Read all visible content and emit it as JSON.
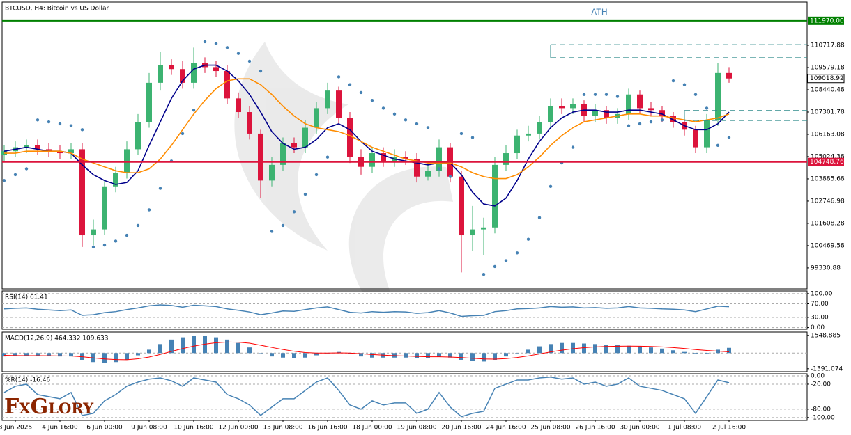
{
  "logo": "FxGlory",
  "chart_data": [
    {
      "type": "candlestick",
      "title": "BTCUSD, H4:  Bitcoin vs US Dollar",
      "annotation": "ATH",
      "categories": [
        null,
        "3 Jun 2025",
        null,
        null,
        null,
        "4 Jun 16:00",
        null,
        null,
        null,
        "6 Jun 00:00",
        null,
        null,
        null,
        "9 Jun 08:00",
        null,
        null,
        null,
        "10 Jun 16:00",
        null,
        null,
        null,
        "12 Jun 00:00",
        null,
        null,
        null,
        "13 Jun 08:00",
        null,
        null,
        null,
        "16 Jun 16:00",
        null,
        null,
        null,
        "18 Jun 00:00",
        null,
        null,
        null,
        "19 Jun 08:00",
        null,
        null,
        null,
        "20 Jun 16:00",
        null,
        null,
        null,
        "24 Jun 16:00",
        null,
        null,
        null,
        "25 Jun 08:00",
        null,
        null,
        null,
        "26 Jun 16:00",
        null,
        null,
        null,
        "30 Jun 00:00",
        null,
        null,
        null,
        "1 Jul 08:00",
        null,
        null,
        null,
        "2 Jul 16:00"
      ],
      "open": [
        105100,
        105300,
        105500,
        105600,
        105400,
        105300,
        105200,
        105400,
        101000,
        101300,
        103500,
        104200,
        105400,
        106800,
        108800,
        109700,
        109500,
        108800,
        109800,
        109600,
        109400,
        108000,
        107300,
        106200,
        103800,
        104600,
        105700,
        105500,
        106500,
        107500,
        108400,
        107000,
        105000,
        104500,
        105200,
        104800,
        105000,
        104900,
        104000,
        104300,
        105500,
        104000,
        101000,
        101300,
        101400,
        104600,
        105200,
        106100,
        106200,
        106800,
        107600,
        107500,
        107700,
        107100,
        107400,
        107000,
        107200,
        108200,
        107500,
        107400,
        107100,
        106800,
        106400,
        105500,
        106900,
        109300
      ],
      "high": [
        105600,
        105800,
        105900,
        105900,
        105700,
        105600,
        105700,
        105700,
        101800,
        103800,
        104500,
        105800,
        107200,
        109300,
        110400,
        110000,
        109900,
        110600,
        110100,
        109900,
        109700,
        108300,
        107600,
        106400,
        105000,
        106000,
        106000,
        106900,
        107800,
        108800,
        108600,
        107300,
        105400,
        105500,
        105500,
        105400,
        105300,
        105200,
        104700,
        105900,
        105700,
        104300,
        102500,
        101900,
        105000,
        105600,
        106400,
        106600,
        107100,
        108000,
        108000,
        108000,
        107900,
        107700,
        107600,
        107500,
        108500,
        108400,
        107800,
        107600,
        107300,
        107000,
        106600,
        107200,
        109800,
        109600
      ],
      "low": [
        104800,
        105000,
        105200,
        105100,
        105000,
        104900,
        104900,
        100400,
        100500,
        101000,
        103200,
        103900,
        105100,
        106500,
        108400,
        109200,
        108500,
        108500,
        109300,
        109100,
        107700,
        107000,
        105900,
        102900,
        103500,
        104300,
        105200,
        105200,
        106200,
        107200,
        106700,
        104700,
        104100,
        104200,
        104500,
        104500,
        104600,
        103700,
        103800,
        104000,
        103700,
        99100,
        100200,
        100000,
        101100,
        104300,
        104900,
        105800,
        105900,
        106500,
        107200,
        107200,
        106800,
        106800,
        106700,
        106700,
        106900,
        107200,
        107100,
        106800,
        106500,
        106100,
        105200,
        105200,
        106600,
        108800
      ],
      "close": [
        105300,
        105500,
        105600,
        105400,
        105300,
        105200,
        105400,
        101000,
        101300,
        103500,
        104200,
        105400,
        106800,
        108800,
        109700,
        109500,
        108800,
        109800,
        109600,
        109400,
        108000,
        107300,
        106200,
        103800,
        104600,
        105700,
        105500,
        106500,
        107500,
        108400,
        107000,
        105000,
        104500,
        105200,
        104800,
        105000,
        104900,
        104000,
        104300,
        105500,
        104000,
        101000,
        101300,
        101400,
        104600,
        105200,
        106100,
        106200,
        106800,
        107600,
        107500,
        107700,
        107100,
        107400,
        107000,
        107200,
        108200,
        107500,
        107400,
        107100,
        106800,
        106400,
        105500,
        106900,
        109300,
        109018.92
      ],
      "up_color": "#3cb371",
      "down_color": "#dc143c",
      "lines": [
        {
          "color": "#00008b",
          "values": [
            105300,
            105400,
            105500,
            105400,
            105300,
            105300,
            105200,
            104600,
            104100,
            103800,
            103600,
            103700,
            104300,
            105600,
            106800,
            108000,
            108900,
            109500,
            109700,
            109700,
            109400,
            108900,
            108200,
            107300,
            106300,
            105700,
            105400,
            105500,
            105900,
            106500,
            106700,
            106400,
            105800,
            105300,
            105100,
            104900,
            104800,
            104700,
            104600,
            104700,
            104700,
            104100,
            103200,
            102600,
            102500,
            102900,
            103800,
            104900,
            105800,
            106500,
            107000,
            107300,
            107400,
            107400,
            107300,
            107300,
            107400,
            107400,
            107300,
            107200,
            106900,
            106600,
            106400,
            106400,
            106700,
            107300
          ]
        },
        {
          "color": "#ff8c00",
          "values": [
            105200,
            105200,
            105300,
            105300,
            105300,
            105300,
            105200,
            104900,
            104700,
            104500,
            104300,
            104200,
            104200,
            104400,
            104900,
            105600,
            106400,
            107200,
            107900,
            108500,
            108900,
            109000,
            109000,
            108700,
            108200,
            107600,
            107100,
            106700,
            106500,
            106400,
            106300,
            106100,
            105800,
            105500,
            105300,
            105100,
            104900,
            104800,
            104700,
            104700,
            104700,
            104500,
            104200,
            104000,
            103900,
            103900,
            104100,
            104500,
            105000,
            105600,
            106100,
            106500,
            106800,
            106900,
            107000,
            107100,
            107200,
            107200,
            107100,
            107100,
            107000,
            106900,
            106800,
            106900,
            107000,
            107200
          ]
        }
      ],
      "sar": {
        "color": "#4682b4",
        "values": [
          103800,
          104100,
          104400,
          106900,
          106800,
          106700,
          106600,
          106400,
          100400,
          100500,
          100700,
          101000,
          101500,
          102300,
          103400,
          104800,
          106200,
          107400,
          110900,
          110800,
          110600,
          110300,
          109900,
          109400,
          101200,
          101500,
          102200,
          103100,
          104100,
          105000,
          109100,
          108700,
          108300,
          107900,
          107500,
          107200,
          106900,
          106700,
          106500,
          104400,
          104000,
          106200,
          106000,
          99000,
          99400,
          99700,
          100100,
          100800,
          101900,
          103500,
          104700,
          105500,
          108200,
          108200,
          108200,
          108100,
          106600,
          106700,
          106800,
          106900,
          108900,
          108700,
          108200,
          107500,
          105600,
          106000
        ]
      },
      "levels": [
        {
          "value": 111970,
          "label": "111970.00",
          "color": "#008000"
        },
        {
          "value": 104748.76,
          "color": "#dc143c"
        }
      ],
      "dashed_levels": {
        "color": "#2e8b8b",
        "values": [
          110750,
          110080,
          107380,
          106870
        ]
      },
      "last_price": 109018.92,
      "ylim": [
        98260,
        112925
      ],
      "yticks": [
        110717.88,
        109579.18,
        108440.48,
        107301.78,
        106163.08,
        105024.38,
        103885.68,
        102746.98,
        101608.28,
        100469.58,
        99330.88
      ],
      "grid": false
    },
    {
      "type": "line",
      "title": "RSI(14) 61.41",
      "color": "#4682b4",
      "values": [
        55,
        57,
        58,
        54,
        52,
        50,
        52,
        36,
        38,
        44,
        47,
        53,
        58,
        64,
        67,
        65,
        60,
        66,
        64,
        62,
        55,
        51,
        46,
        38,
        43,
        49,
        48,
        53,
        58,
        61,
        53,
        45,
        43,
        47,
        45,
        47,
        46,
        42,
        44,
        50,
        43,
        33,
        35,
        36,
        47,
        50,
        55,
        56,
        58,
        62,
        60,
        61,
        58,
        59,
        57,
        58,
        62,
        58,
        57,
        55,
        54,
        52,
        47,
        55,
        63,
        61.41
      ],
      "ylim": [
        -5,
        108
      ],
      "yticks": [
        {
          "value": 100,
          "label": "100.00"
        },
        {
          "value": 70,
          "label": "70.00"
        },
        {
          "value": 30,
          "label": "30.00"
        },
        {
          "value": 0,
          "label": "0.00"
        }
      ],
      "grid": true
    },
    {
      "type": "macd",
      "title": "MACD(12,26,9) 464.332 109.633",
      "histogram": {
        "color": "#4682b4",
        "values": [
          -300,
          -250,
          -200,
          -200,
          -250,
          -300,
          -300,
          -600,
          -800,
          -850,
          -800,
          -600,
          -200,
          300,
          800,
          1200,
          1400,
          1500,
          1500,
          1400,
          1200,
          900,
          500,
          0,
          -300,
          -400,
          -450,
          -400,
          -200,
          0,
          100,
          -100,
          -300,
          -400,
          -400,
          -400,
          -400,
          -450,
          -450,
          -350,
          -400,
          -600,
          -700,
          -750,
          -600,
          -300,
          0,
          300,
          600,
          800,
          900,
          900,
          850,
          800,
          750,
          700,
          650,
          600,
          500,
          400,
          250,
          100,
          -100,
          -50,
          300,
          464.332
        ]
      },
      "signal": {
        "color": "#ff0000",
        "values": [
          -200,
          -220,
          -230,
          -230,
          -240,
          -250,
          -260,
          -330,
          -430,
          -520,
          -580,
          -590,
          -510,
          -350,
          -120,
          150,
          400,
          620,
          800,
          920,
          980,
          970,
          880,
          700,
          500,
          320,
          160,
          50,
          0,
          0,
          20,
          0,
          -60,
          -130,
          -180,
          -230,
          -260,
          -300,
          -330,
          -330,
          -350,
          -400,
          -460,
          -520,
          -540,
          -490,
          -390,
          -250,
          -80,
          100,
          260,
          390,
          480,
          550,
          590,
          610,
          620,
          610,
          590,
          550,
          490,
          410,
          310,
          230,
          170,
          109.633
        ]
      },
      "ylim": [
        -1650,
        1870
      ],
      "yticks": [
        1548.885,
        -1391.074
      ],
      "grid": false
    },
    {
      "type": "line",
      "title": "%R(14) -16.46",
      "color": "#4682b4",
      "values": [
        -40,
        -25,
        -20,
        -45,
        -50,
        -55,
        -40,
        -95,
        -90,
        -60,
        -45,
        -25,
        -15,
        -8,
        -5,
        -12,
        -25,
        -5,
        -10,
        -15,
        -45,
        -55,
        -70,
        -95,
        -75,
        -55,
        -55,
        -35,
        -15,
        -5,
        -35,
        -70,
        -80,
        -60,
        -70,
        -65,
        -65,
        -90,
        -80,
        -40,
        -75,
        -98,
        -90,
        -85,
        -30,
        -20,
        -10,
        -10,
        -5,
        -3,
        -8,
        -5,
        -20,
        -15,
        -25,
        -20,
        -5,
        -25,
        -30,
        -35,
        -45,
        -55,
        -90,
        -50,
        -10,
        -16.46
      ],
      "ylim": [
        -107,
        5
      ],
      "yticks": [
        {
          "value": 0,
          "label": "0.00"
        },
        {
          "value": -20,
          "label": "-20.00"
        },
        {
          "value": -80,
          "label": "-80.00"
        },
        {
          "value": -100,
          "label": "-100.00"
        }
      ],
      "grid": true
    }
  ]
}
